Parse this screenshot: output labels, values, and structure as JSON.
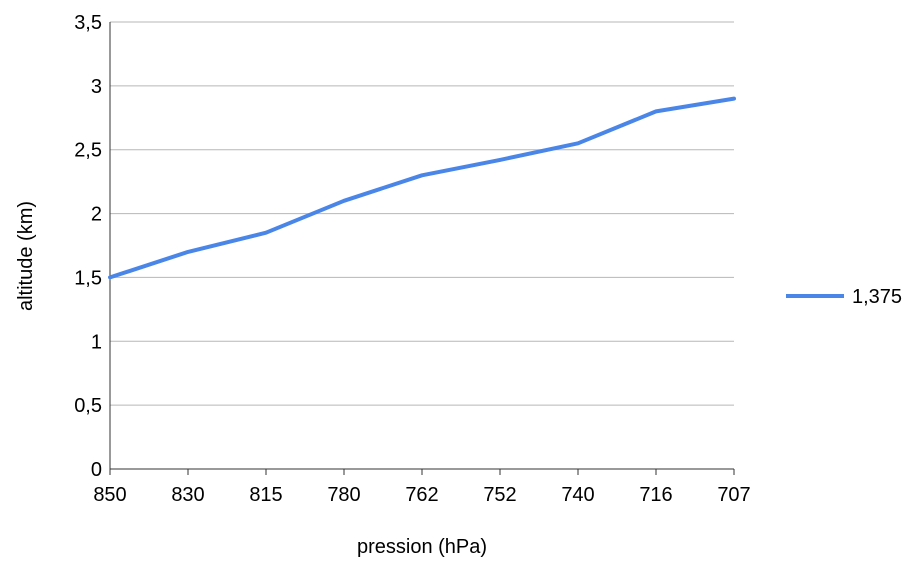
{
  "chart_data": {
    "type": "line",
    "x": [
      "850",
      "830",
      "815",
      "780",
      "762",
      "752",
      "740",
      "716",
      "707"
    ],
    "series": [
      {
        "name": "1,375",
        "values": [
          1.5,
          1.7,
          1.85,
          2.1,
          2.3,
          2.42,
          2.55,
          2.8,
          2.9
        ],
        "color": "#4a86e8"
      }
    ],
    "xlabel": "pression (hPa)",
    "ylabel": "altitude (km)",
    "ylim": [
      0,
      3.5
    ],
    "yticks": [
      "0",
      "0,5",
      "1",
      "1,5",
      "2",
      "2,5",
      "3",
      "3,5"
    ],
    "grid": true,
    "legend_position": "right",
    "colors": {
      "grid": "#b7b7b7",
      "axis": "#333333"
    }
  }
}
